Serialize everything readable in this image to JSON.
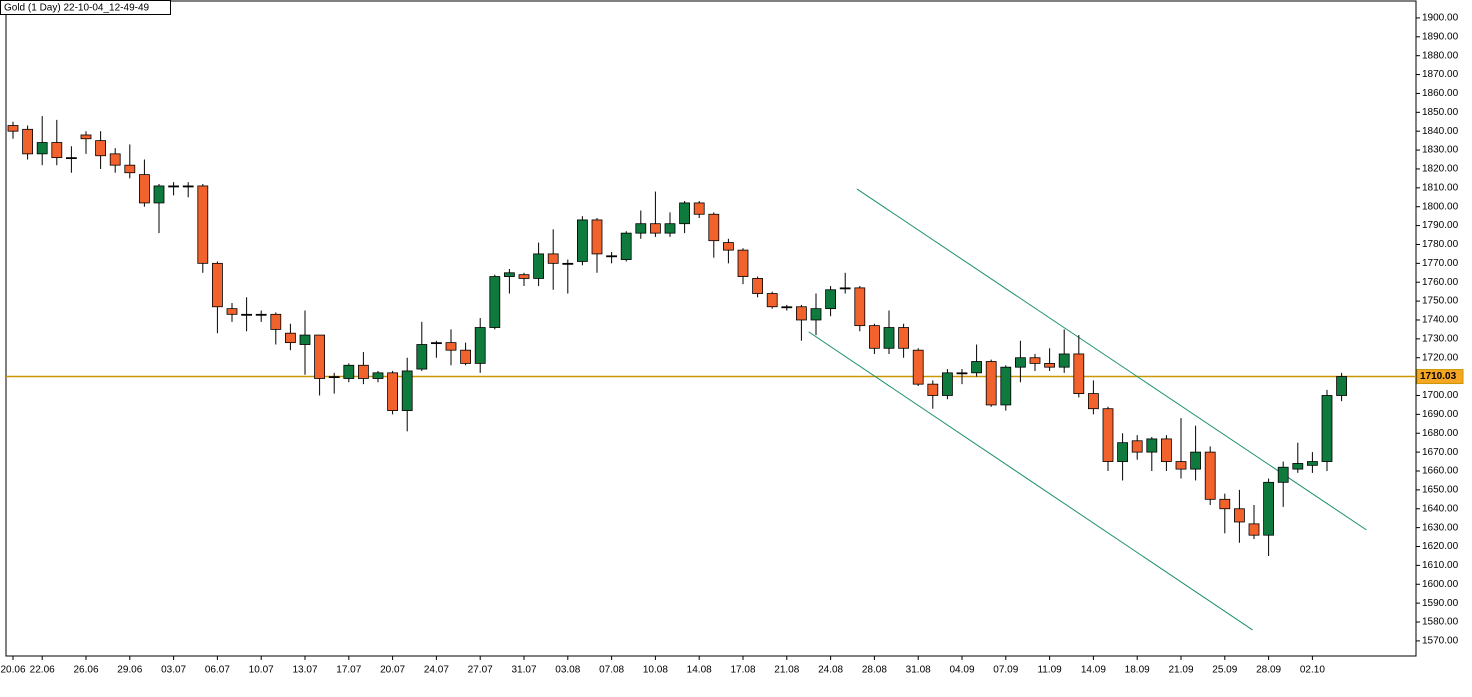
{
  "chart_data": {
    "type": "candlestick",
    "title": "Gold (1 Day) 22-10-04_12-49-49",
    "categories": [
      "20.06",
      null,
      "22.06",
      null,
      null,
      "26.06",
      null,
      null,
      "29.06",
      null,
      null,
      "03.07",
      null,
      null,
      "06.07",
      null,
      null,
      "10.07",
      null,
      null,
      "13.07",
      null,
      null,
      "17.07",
      null,
      null,
      "20.07",
      null,
      null,
      "24.07",
      null,
      null,
      "27.07",
      null,
      null,
      "31.07",
      null,
      null,
      "03.08",
      null,
      null,
      "07.08",
      null,
      null,
      "10.08",
      null,
      null,
      "14.08",
      null,
      null,
      "17.08",
      null,
      null,
      "21.08",
      null,
      null,
      "24.08",
      null,
      null,
      "28.08",
      null,
      null,
      "31.08",
      null,
      null,
      "04.09",
      null,
      null,
      "07.09",
      null,
      null,
      "11.09",
      null,
      null,
      "14.09",
      null,
      null,
      "18.09",
      null,
      null,
      "21.09",
      null,
      null,
      "25.09",
      null,
      null,
      "28.09",
      null,
      null,
      "02.10",
      null,
      null
    ],
    "open": [
      1843,
      1841,
      1828,
      1834,
      1826,
      1838,
      1835,
      1828,
      1822,
      1817,
      1802,
      1811,
      1811,
      1811,
      1770,
      1746,
      1743,
      1743,
      1743,
      1733,
      1727,
      1732,
      1710,
      1709,
      1716,
      1709,
      1712,
      1692,
      1714,
      1728,
      1728,
      1724,
      1717,
      1736,
      1763,
      1764,
      1762,
      1775,
      1770,
      1771,
      1793,
      1774,
      1772,
      1786,
      1791,
      1786,
      1791,
      1802,
      1796,
      1781,
      1777,
      1762,
      1754,
      1747,
      1747,
      1740,
      1746,
      1757,
      1757,
      1737,
      1725,
      1736,
      1724,
      1706,
      1700,
      1712,
      1712,
      1718,
      1695,
      1715,
      1720,
      1717,
      1715,
      1722,
      1701,
      1693,
      1665,
      1676,
      1670,
      1677,
      1665,
      1661,
      1670,
      1645,
      1640,
      1632,
      1626,
      1654,
      1661,
      1663,
      1665,
      1700
    ],
    "high": [
      1845,
      1843,
      1848,
      1846,
      1832,
      1840,
      1840,
      1831,
      1833,
      1825,
      1812,
      1813,
      1813,
      1812,
      1771,
      1749,
      1752,
      1745,
      1744,
      1738,
      1745,
      1732,
      1712,
      1717,
      1723,
      1713,
      1713,
      1720,
      1739,
      1729,
      1735,
      1728,
      1741,
      1764,
      1767,
      1765,
      1781,
      1788,
      1772,
      1795,
      1794,
      1776,
      1787,
      1798,
      1808,
      1797,
      1803,
      1803,
      1797,
      1783,
      1778,
      1763,
      1755,
      1748,
      1748,
      1754,
      1758,
      1765,
      1758,
      1738,
      1745,
      1738,
      1725,
      1708,
      1714,
      1714,
      1727,
      1719,
      1716,
      1729,
      1722,
      1725,
      1735,
      1732,
      1708,
      1694,
      1680,
      1679,
      1678,
      1679,
      1688,
      1684,
      1673,
      1648,
      1650,
      1642,
      1656,
      1665,
      1675,
      1670,
      1703,
      1712
    ],
    "low": [
      1836,
      1825,
      1822,
      1822,
      1818,
      1828,
      1820,
      1818,
      1815,
      1800,
      1786,
      1806,
      1805,
      1765,
      1733,
      1739,
      1734,
      1739,
      1727,
      1724,
      1711,
      1700,
      1701,
      1707,
      1706,
      1707,
      1690,
      1681,
      1713,
      1720,
      1716,
      1716,
      1712,
      1735,
      1754,
      1758,
      1758,
      1756,
      1754,
      1769,
      1765,
      1770,
      1771,
      1783,
      1784,
      1784,
      1786,
      1794,
      1773,
      1770,
      1759,
      1752,
      1746,
      1745,
      1729,
      1732,
      1742,
      1754,
      1734,
      1722,
      1722,
      1720,
      1705,
      1693,
      1698,
      1706,
      1710,
      1694,
      1692,
      1707,
      1713,
      1713,
      1712,
      1699,
      1690,
      1660,
      1655,
      1666,
      1660,
      1660,
      1656,
      1655,
      1642,
      1627,
      1622,
      1624,
      1615,
      1641,
      1659,
      1659,
      1660,
      1697
    ],
    "close": [
      1840,
      1828,
      1834,
      1826,
      1826,
      1836,
      1827,
      1822,
      1818,
      1802,
      1811,
      1811,
      1811,
      1770,
      1747,
      1743,
      1743,
      1743,
      1735,
      1728,
      1732,
      1709,
      1710,
      1716,
      1709,
      1712,
      1692,
      1713,
      1727,
      1728,
      1724,
      1717,
      1736,
      1763,
      1765,
      1762,
      1775,
      1770,
      1770,
      1793,
      1775,
      1774,
      1786,
      1791,
      1786,
      1791,
      1802,
      1796,
      1782,
      1777,
      1763,
      1754,
      1747,
      1747,
      1740,
      1746,
      1756,
      1757,
      1737,
      1725,
      1736,
      1725,
      1706,
      1700,
      1712,
      1712,
      1718,
      1695,
      1715,
      1720,
      1717,
      1715,
      1722,
      1701,
      1693,
      1665,
      1675,
      1670,
      1677,
      1665,
      1661,
      1670,
      1645,
      1640,
      1633,
      1626,
      1654,
      1662,
      1664,
      1665,
      1700,
      1710.03
    ],
    "up_color": "#0e7a3e",
    "down_color": "#f2622d",
    "current_price": 1710.03,
    "price_line_color": "#c99700",
    "trendlines": [
      {
        "color": "#1b8f6e",
        "points": [
          [
            57.8,
            1809.4
          ],
          [
            92.7,
            1628.8
          ]
        ]
      },
      {
        "color": "#1b8f6e",
        "points": [
          [
            54.5,
            1733.7
          ],
          [
            84.9,
            1575.8
          ]
        ]
      }
    ],
    "ylim": [
      1562,
      1904.2
    ],
    "yticks": [
      {
        "value": 1570,
        "label": "1570.00"
      },
      {
        "value": 1580,
        "label": "1580.00"
      },
      {
        "value": 1590,
        "label": "1590.00"
      },
      {
        "value": 1600,
        "label": "1600.00"
      },
      {
        "value": 1610,
        "label": "1610.00"
      },
      {
        "value": 1620,
        "label": "1620.00"
      },
      {
        "value": 1630,
        "label": "1630.00"
      },
      {
        "value": 1640,
        "label": "1640.00"
      },
      {
        "value": 1650,
        "label": "1650.00"
      },
      {
        "value": 1660,
        "label": "1660.00"
      },
      {
        "value": 1670,
        "label": "1670.00"
      },
      {
        "value": 1680,
        "label": "1680.00"
      },
      {
        "value": 1690,
        "label": "1690.00"
      },
      {
        "value": 1700,
        "label": "1700.00"
      },
      {
        "value": 1720,
        "label": "1720.00"
      },
      {
        "value": 1730,
        "label": "1730.00"
      },
      {
        "value": 1740,
        "label": "1740.00"
      },
      {
        "value": 1750,
        "label": "1750.00"
      },
      {
        "value": 1760,
        "label": "1760.00"
      },
      {
        "value": 1770,
        "label": "1770.00"
      },
      {
        "value": 1780,
        "label": "1780.00"
      },
      {
        "value": 1790,
        "label": "1790.00"
      },
      {
        "value": 1800,
        "label": "1800.00"
      },
      {
        "value": 1810,
        "label": "1810.00"
      },
      {
        "value": 1820,
        "label": "1820.00"
      },
      {
        "value": 1830,
        "label": "1830.00"
      },
      {
        "value": 1840,
        "label": "1840.00"
      },
      {
        "value": 1850,
        "label": "1850.00"
      },
      {
        "value": 1860,
        "label": "1860.00"
      },
      {
        "value": 1870,
        "label": "1870.00"
      },
      {
        "value": 1880,
        "label": "1880.00"
      },
      {
        "value": 1890,
        "label": "1890.00"
      },
      {
        "value": 1900,
        "label": "1900.00"
      }
    ]
  }
}
